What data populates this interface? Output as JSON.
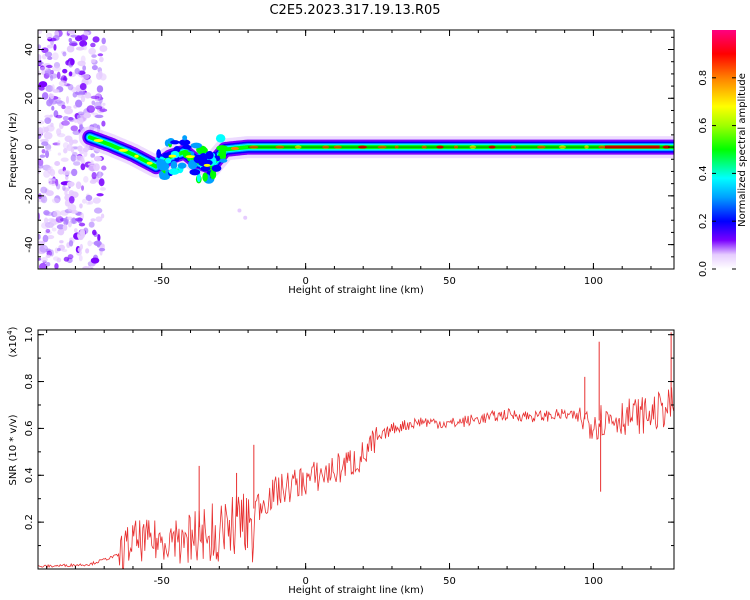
{
  "title": "C2E5.2023.317.19.13.R05",
  "chart_data": [
    {
      "type": "heatmap",
      "xlabel": "Height of straight line (km)",
      "ylabel": "Frequency (Hz)",
      "xlim": [
        -93,
        128
      ],
      "ylim": [
        -50,
        48
      ],
      "xticks": [
        -50,
        0,
        50,
        100
      ],
      "yticks": [
        -40,
        -20,
        0,
        20,
        40
      ],
      "colorbar": {
        "label": "Normalized spectral amplitude",
        "range": [
          0.0,
          1.0
        ],
        "ticks": [
          "0.0",
          "0.2",
          "0.4",
          "0.6",
          "0.8"
        ],
        "colors": [
          "#ffffff",
          "#e6ccff",
          "#7a00ff",
          "#0000ff",
          "#00a0ff",
          "#00ffff",
          "#00ff00",
          "#a0ff00",
          "#ffff00",
          "#ff8000",
          "#ff0000",
          "#ff0080"
        ]
      },
      "ridge": [
        {
          "x": -75,
          "y": 4
        },
        {
          "x": -68,
          "y": 1
        },
        {
          "x": -60,
          "y": -3
        },
        {
          "x": -52,
          "y": -8
        },
        {
          "x": -47,
          "y": -4
        },
        {
          "x": -42,
          "y": -2
        },
        {
          "x": -38,
          "y": -6
        },
        {
          "x": -33,
          "y": -8
        },
        {
          "x": -28,
          "y": -1
        },
        {
          "x": -20,
          "y": 0
        },
        {
          "x": 0,
          "y": 0
        },
        {
          "x": 50,
          "y": 0
        },
        {
          "x": 100,
          "y": 0
        },
        {
          "x": 128,
          "y": 0
        }
      ],
      "noise_region_x": [
        -93,
        -70
      ]
    },
    {
      "type": "line",
      "xlabel": "Height of straight line (km)",
      "ylabel": "SNR (10 * v/v)",
      "y_multiplier": "(x10",
      "y_multiplier_exp": "4",
      "y_multiplier_close": ")",
      "xlim": [
        -93,
        128
      ],
      "ylim": [
        0,
        1.02
      ],
      "xticks": [
        -50,
        0,
        50,
        100
      ],
      "yticks": [
        0.2,
        0.4,
        0.6,
        0.8,
        1.0
      ],
      "ytick_labels": [
        "0.2",
        "0.4",
        "0.6",
        "0.8",
        "1.0"
      ],
      "series": [
        {
          "color": "#e83030",
          "trend": [
            {
              "x": -93,
              "y": 0.01
            },
            {
              "x": -75,
              "y": 0.02
            },
            {
              "x": -65,
              "y": 0.06
            },
            {
              "x": -60,
              "y": 0.12
            },
            {
              "x": -50,
              "y": 0.12
            },
            {
              "x": -40,
              "y": 0.17
            },
            {
              "x": -30,
              "y": 0.2
            },
            {
              "x": -20,
              "y": 0.24
            },
            {
              "x": -10,
              "y": 0.33
            },
            {
              "x": 0,
              "y": 0.38
            },
            {
              "x": 10,
              "y": 0.42
            },
            {
              "x": 20,
              "y": 0.48
            },
            {
              "x": 25,
              "y": 0.55
            },
            {
              "x": 30,
              "y": 0.6
            },
            {
              "x": 40,
              "y": 0.63
            },
            {
              "x": 50,
              "y": 0.62
            },
            {
              "x": 60,
              "y": 0.64
            },
            {
              "x": 70,
              "y": 0.66
            },
            {
              "x": 80,
              "y": 0.65
            },
            {
              "x": 90,
              "y": 0.66
            },
            {
              "x": 100,
              "y": 0.63
            },
            {
              "x": 110,
              "y": 0.65
            },
            {
              "x": 120,
              "y": 0.66
            },
            {
              "x": 128,
              "y": 0.7
            }
          ],
          "spikes": [
            {
              "x": -37,
              "y": 0.44
            },
            {
              "x": -24,
              "y": 0.41
            },
            {
              "x": -18,
              "y": 0.53
            },
            {
              "x": 97,
              "y": 0.82
            },
            {
              "x": 102,
              "y": 0.97
            },
            {
              "x": 102.5,
              "y": 0.33
            },
            {
              "x": 127,
              "y": 1.01
            }
          ]
        }
      ]
    }
  ]
}
